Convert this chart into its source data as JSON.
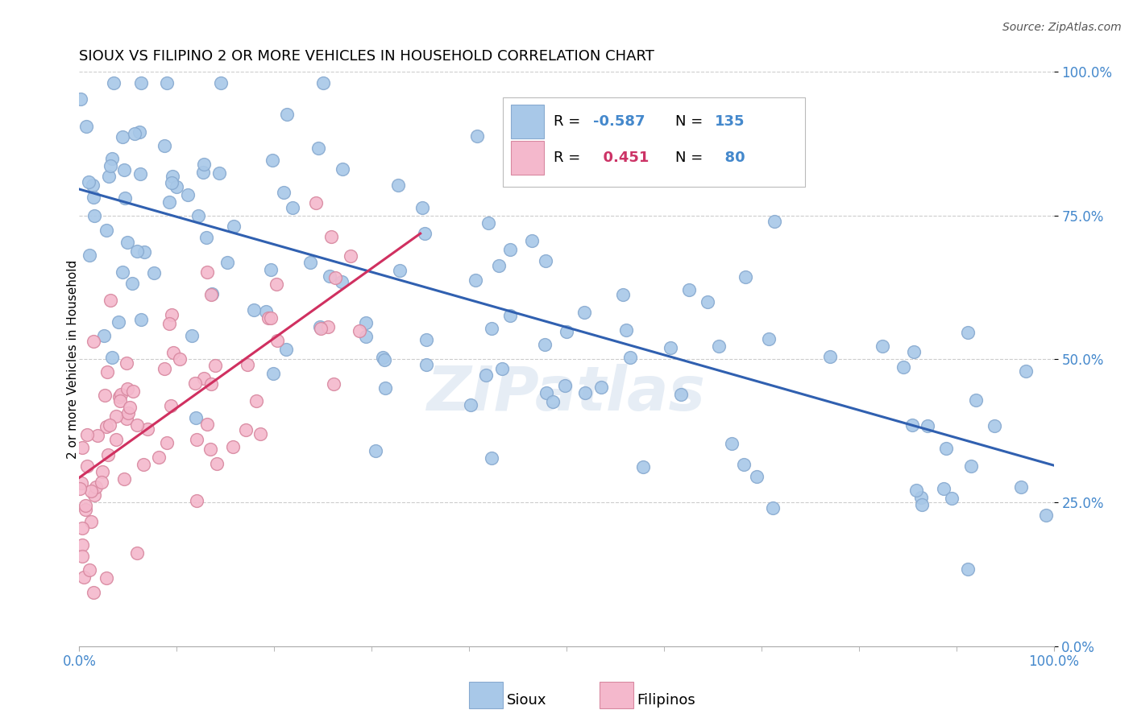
{
  "title": "SIOUX VS FILIPINO 2 OR MORE VEHICLES IN HOUSEHOLD CORRELATION CHART",
  "source": "Source: ZipAtlas.com",
  "ylabel": "2 or more Vehicles in Household",
  "sioux_R": -0.587,
  "sioux_N": 135,
  "filipino_R": 0.451,
  "filipino_N": 80,
  "sioux_color": "#a8c8e8",
  "sioux_edge_color": "#88aad0",
  "sioux_line_color": "#3060b0",
  "filipino_color": "#f4b8cc",
  "filipino_edge_color": "#d888a0",
  "filipino_line_color": "#d03060",
  "background": "#ffffff",
  "grid_color": "#cccccc",
  "watermark": "ZIPatlas",
  "legend_R_color_sioux": "#4488cc",
  "legend_N_color_sioux": "#4488cc",
  "legend_R_color_filipino": "#cc3366",
  "legend_N_color_filipino": "#4488cc",
  "tick_label_color": "#4488cc",
  "sioux_seed": 101
}
